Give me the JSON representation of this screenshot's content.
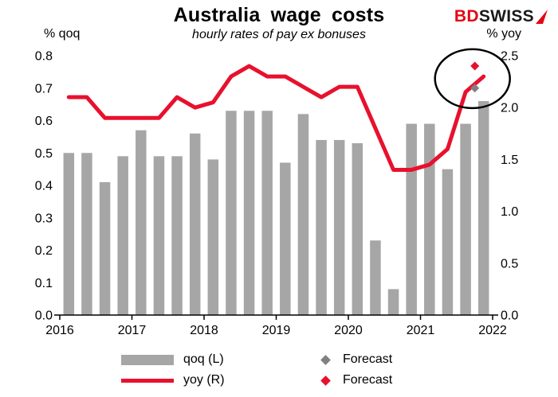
{
  "header": {
    "title": "Australia wage costs",
    "subtitle": "hourly rates of pay ex bonuses",
    "logo": {
      "part1": "BD",
      "part2": "SWISS"
    }
  },
  "axis_labels": {
    "left": "% qoq",
    "right": "% yoy"
  },
  "legend": {
    "items": [
      {
        "label": "qoq (L)",
        "swatch": "bar",
        "color": "#a6a6a6"
      },
      {
        "label": "yoy (R)",
        "swatch": "line",
        "color": "#e8112d"
      },
      {
        "label": "Forecast",
        "swatch": "diamond",
        "color": "#808080"
      },
      {
        "label": "Forecast",
        "swatch": "diamond",
        "color": "#e8112d"
      }
    ]
  },
  "colors": {
    "bar_gray": "#a6a6a6",
    "line_red": "#e8112d",
    "forecast_gray": "#808080",
    "forecast_red": "#e8112d",
    "logo_red": "#e30613",
    "axis_black": "#000000"
  },
  "chart_data": {
    "type": "bar",
    "subtype": "combo-bar-line",
    "title": "Australia wage costs",
    "subtitle": "hourly rates of pay ex bonuses",
    "grid": false,
    "legend_position": "bottom",
    "categories": [
      "2016 Q1",
      "2016 Q2",
      "2016 Q3",
      "2016 Q4",
      "2017 Q1",
      "2017 Q2",
      "2017 Q3",
      "2017 Q4",
      "2018 Q1",
      "2018 Q2",
      "2018 Q3",
      "2018 Q4",
      "2019 Q1",
      "2019 Q2",
      "2019 Q3",
      "2019 Q4",
      "2020 Q1",
      "2020 Q2",
      "2020 Q3",
      "2020 Q4",
      "2021 Q1",
      "2021 Q2",
      "2021 Q3",
      "2021 Q4"
    ],
    "series": [
      {
        "name": "qoq (L)",
        "type": "bar",
        "axis": "left",
        "color": "#a6a6a6",
        "values": [
          0.5,
          0.5,
          0.41,
          0.49,
          0.57,
          0.49,
          0.49,
          0.56,
          0.48,
          0.63,
          0.63,
          0.63,
          0.47,
          0.62,
          0.54,
          0.54,
          0.53,
          0.23,
          0.08,
          0.59,
          0.59,
          0.45,
          0.59,
          0.66
        ]
      },
      {
        "name": "yoy (R)",
        "type": "line",
        "axis": "right",
        "color": "#e8112d",
        "values": [
          2.1,
          2.1,
          1.9,
          1.9,
          1.9,
          1.9,
          2.1,
          2.0,
          2.05,
          2.3,
          2.4,
          2.3,
          2.3,
          2.2,
          2.1,
          2.2,
          2.2,
          1.8,
          1.4,
          1.4,
          1.45,
          1.6,
          2.15,
          2.3
        ]
      },
      {
        "name": "Forecast",
        "type": "scatter-diamond",
        "axis": "left",
        "color": "#808080",
        "points": [
          {
            "category": "2021 Q4",
            "value": 0.7
          }
        ]
      },
      {
        "name": "Forecast",
        "type": "scatter-diamond",
        "axis": "right",
        "color": "#e8112d",
        "points": [
          {
            "category": "2021 Q4",
            "value": 2.4
          }
        ]
      }
    ],
    "left_axis": {
      "label": "% qoq",
      "min": 0.0,
      "max": 0.8,
      "step": 0.1,
      "ticks": [
        "0.0",
        "0.1",
        "0.2",
        "0.3",
        "0.4",
        "0.5",
        "0.6",
        "0.7",
        "0.8"
      ]
    },
    "right_axis": {
      "label": "% yoy",
      "min": 0.0,
      "max": 2.5,
      "step": 0.5,
      "ticks": [
        "0.0",
        "0.5",
        "1.0",
        "1.5",
        "2.0",
        "2.5"
      ]
    },
    "x_axis": {
      "ticks": [
        "2016",
        "2017",
        "2018",
        "2019",
        "2020",
        "2021",
        "2022"
      ]
    },
    "annotation": {
      "type": "ellipse",
      "target": "forecast-points",
      "color": "#000000"
    }
  }
}
